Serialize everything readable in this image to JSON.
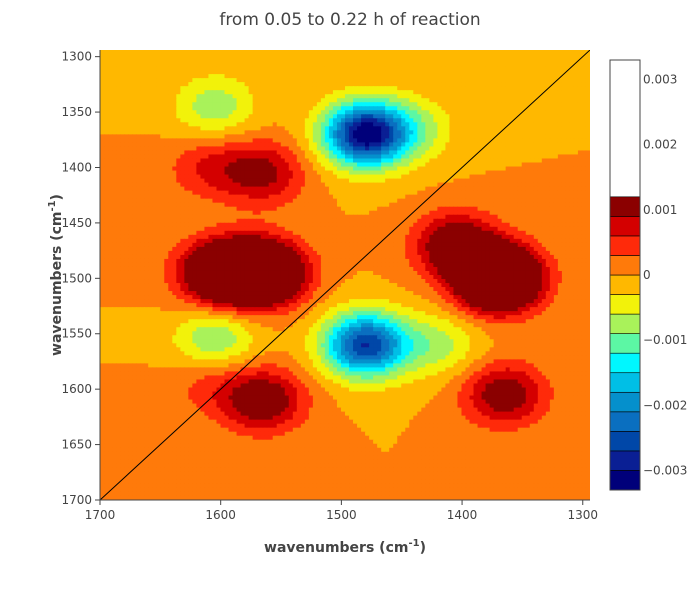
{
  "chart_data": {
    "type": "heatmap",
    "subtype": "contour",
    "title": "from 0.05 to 0.22 h of reaction",
    "xlabel": {
      "text": "wavenumbers (cm",
      "sup": "-1",
      "suffix": ")"
    },
    "ylabel": {
      "text": "wavenumbers (cm",
      "sup": "-1",
      "suffix": ")"
    },
    "xlim": [
      1700,
      1294
    ],
    "ylim": [
      1700,
      1294
    ],
    "x_ticks": [
      1700,
      1600,
      1500,
      1400,
      1300
    ],
    "x_tick_labels": [
      "1700",
      "1600",
      "1500",
      "1400",
      "1300"
    ],
    "y_ticks": [
      1300,
      1350,
      1400,
      1450,
      1500,
      1550,
      1600,
      1650,
      1700
    ],
    "y_tick_labels": [
      "1300",
      "1350",
      "1400",
      "1450",
      "1500",
      "1550",
      "1600",
      "1650",
      "1700"
    ],
    "colorbar": {
      "min": -0.0033,
      "max": 0.0033,
      "levels": [
        -0.0033,
        -0.003,
        -0.0027,
        -0.0024,
        -0.0021,
        -0.0018,
        -0.0015,
        -0.0012,
        -0.0009,
        -0.0006,
        -0.0003,
        0,
        0.0003,
        0.0006,
        0.0009,
        0.0012,
        0.0015,
        0.0018,
        0.0021,
        0.0024,
        0.0027,
        0.003,
        0.0033
      ],
      "colors": [
        "#00007a",
        "#0a1f94",
        "#0047a8",
        "#0a6fc0",
        "#0590cc",
        "#00bfe6",
        "#00f7ff",
        "#5cf7a4",
        "#a9f25a",
        "#f2f20a",
        "#ffb800",
        "#ff7a0a",
        "#ff2a0a",
        "#d40000",
        "#8b0000"
      ],
      "ticks": [
        0.003,
        0.002,
        0.001,
        0,
        -0.001,
        -0.002,
        -0.003
      ],
      "tick_labels": [
        "0.003",
        "0.002",
        "0.001",
        "0",
        "−0.001",
        "−0.002",
        "−0.003"
      ]
    },
    "peaks": [
      {
        "x": 1480,
        "y": 1370,
        "value": -0.0032
      },
      {
        "x": 1480,
        "y": 1560,
        "value": -0.0027
      },
      {
        "x": 1370,
        "y": 1500,
        "value": 0.003
      },
      {
        "x": 1565,
        "y": 1495,
        "value": 0.0025
      },
      {
        "x": 1600,
        "y": 1495,
        "value": 0.002
      },
      {
        "x": 1405,
        "y": 1470,
        "value": 0.0014
      },
      {
        "x": 1365,
        "y": 1605,
        "value": 0.0012
      },
      {
        "x": 1565,
        "y": 1405,
        "value": 0.001
      },
      {
        "x": 1610,
        "y": 1400,
        "value": 0.0006
      },
      {
        "x": 1565,
        "y": 1610,
        "value": 0.0013
      },
      {
        "x": 1610,
        "y": 1595,
        "value": 0.0004
      },
      {
        "x": 1605,
        "y": 1345,
        "value": -0.0008
      },
      {
        "x": 1605,
        "y": 1555,
        "value": -0.0009
      },
      {
        "x": 1420,
        "y": 1560,
        "value": -0.0007
      },
      {
        "x": 1440,
        "y": 1365,
        "value": -0.0006
      }
    ],
    "grid": false,
    "legend": "colorbar-right",
    "diagonal": true
  }
}
